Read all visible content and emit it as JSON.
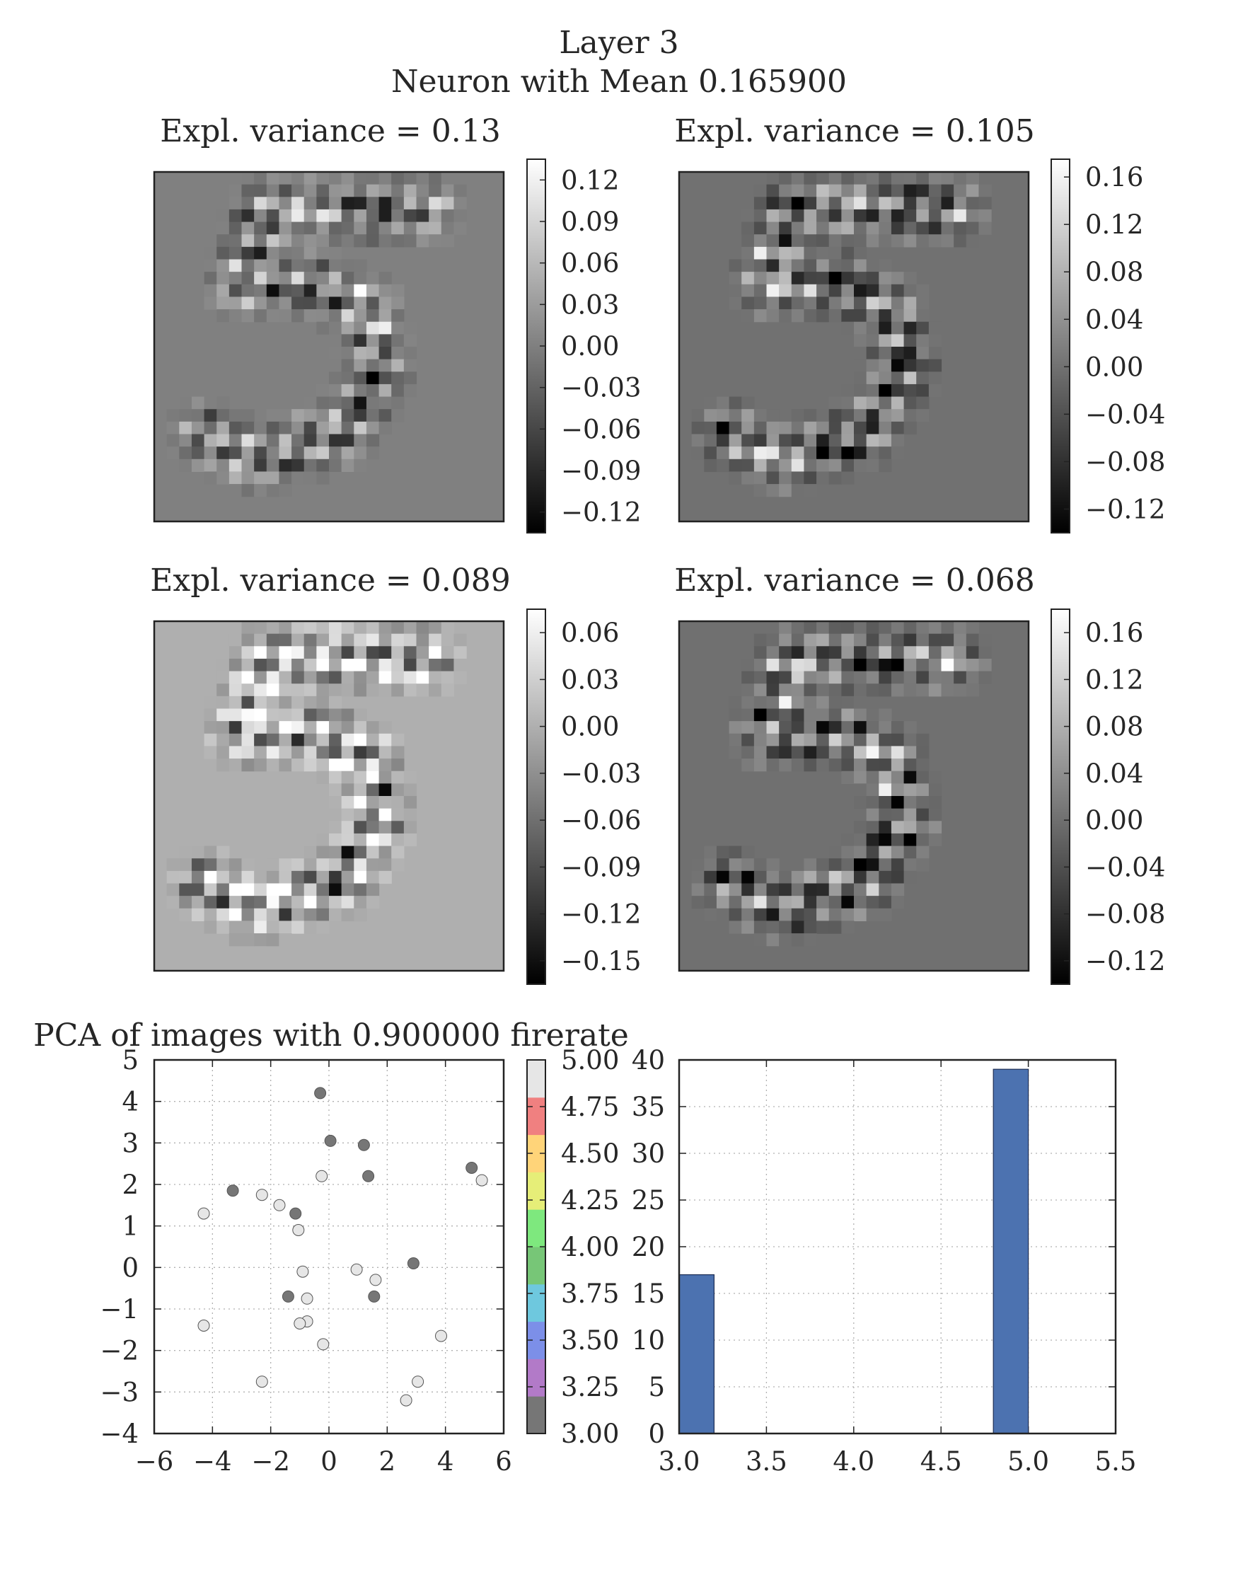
{
  "figure": {
    "suptitle_line1": "Layer 3",
    "suptitle_line2": "Neuron with Mean 0.165900"
  },
  "colors": {
    "bar": "#4c72b0",
    "dark_point": "#767676",
    "light_point": "#e6e6e6",
    "axis": "#222222",
    "grid": "#b0b0b0"
  },
  "chart_data": [
    {
      "type": "heatmap",
      "title": "Expl. variance = 0.13",
      "description_digit": "5",
      "colormap": "gray",
      "colorbar_ticks": [
        "0.12",
        "0.09",
        "0.06",
        "0.03",
        "0.00",
        "−0.03",
        "−0.06",
        "−0.09",
        "−0.12"
      ],
      "vrange": [
        -0.135,
        0.135
      ],
      "background_value": 0.0
    },
    {
      "type": "heatmap",
      "title": "Expl. variance = 0.105",
      "colormap": "gray",
      "colorbar_ticks": [
        "0.16",
        "0.12",
        "0.08",
        "0.04",
        "0.00",
        "−0.04",
        "−0.08",
        "−0.12"
      ],
      "vrange": [
        -0.14,
        0.175
      ],
      "background_value": 0.0
    },
    {
      "type": "heatmap",
      "title": "Expl. variance = 0.089",
      "colormap": "gray",
      "colorbar_ticks": [
        "0.06",
        "0.03",
        "0.00",
        "−0.03",
        "−0.06",
        "−0.09",
        "−0.12",
        "−0.15"
      ],
      "vrange": [
        -0.165,
        0.075
      ],
      "background_value": 0.0
    },
    {
      "type": "heatmap",
      "title": "Expl. variance = 0.068",
      "colormap": "gray",
      "colorbar_ticks": [
        "0.16",
        "0.12",
        "0.08",
        "0.04",
        "0.00",
        "−0.04",
        "−0.08",
        "−0.12"
      ],
      "vrange": [
        -0.14,
        0.18
      ],
      "background_value": 0.0
    },
    {
      "type": "scatter",
      "title": "PCA of images with 0.900000 firerate",
      "xlim": [
        -6,
        6
      ],
      "ylim": [
        -4,
        5
      ],
      "xticks": [
        "−6",
        "−4",
        "−2",
        "0",
        "2",
        "4",
        "6"
      ],
      "yticks": [
        "5",
        "4",
        "3",
        "2",
        "1",
        "0",
        "−1",
        "−2",
        "−3",
        "−4"
      ],
      "grid": true,
      "colorbar": {
        "ticks": [
          "5.00",
          "4.75",
          "4.50",
          "4.25",
          "4.00",
          "3.75",
          "3.50",
          "3.25",
          "3.00"
        ],
        "range": [
          3.0,
          5.0
        ],
        "segment_colors": [
          "#767676",
          "#b27ac8",
          "#7c8fe8",
          "#6ec8de",
          "#77c677",
          "#7ee87e",
          "#e6ee78",
          "#ffd479",
          "#f08080",
          "#e6e6e6"
        ]
      },
      "points": [
        {
          "x": -0.3,
          "y": 4.2,
          "c": 3
        },
        {
          "x": 0.05,
          "y": 3.05,
          "c": 3
        },
        {
          "x": 1.2,
          "y": 2.95,
          "c": 3
        },
        {
          "x": 1.35,
          "y": 2.2,
          "c": 3
        },
        {
          "x": 4.9,
          "y": 2.4,
          "c": 3
        },
        {
          "x": -3.3,
          "y": 1.85,
          "c": 3
        },
        {
          "x": -1.15,
          "y": 1.3,
          "c": 3
        },
        {
          "x": 2.9,
          "y": 0.1,
          "c": 3
        },
        {
          "x": -1.4,
          "y": -0.7,
          "c": 3
        },
        {
          "x": 1.55,
          "y": -0.7,
          "c": 3
        },
        {
          "x": 5.25,
          "y": 2.1,
          "c": 5
        },
        {
          "x": -0.25,
          "y": 2.2,
          "c": 5
        },
        {
          "x": -2.3,
          "y": 1.75,
          "c": 5
        },
        {
          "x": -1.7,
          "y": 1.5,
          "c": 5
        },
        {
          "x": -4.3,
          "y": 1.3,
          "c": 5
        },
        {
          "x": -1.05,
          "y": 0.9,
          "c": 5
        },
        {
          "x": -0.9,
          "y": -0.1,
          "c": 5
        },
        {
          "x": 0.95,
          "y": -0.05,
          "c": 5
        },
        {
          "x": 1.6,
          "y": -0.3,
          "c": 5
        },
        {
          "x": -0.75,
          "y": -0.75,
          "c": 5
        },
        {
          "x": -0.75,
          "y": -1.3,
          "c": 5
        },
        {
          "x": -1.0,
          "y": -1.35,
          "c": 5
        },
        {
          "x": -4.3,
          "y": -1.4,
          "c": 5
        },
        {
          "x": -0.2,
          "y": -1.85,
          "c": 5
        },
        {
          "x": 3.85,
          "y": -1.65,
          "c": 5
        },
        {
          "x": -2.3,
          "y": -2.75,
          "c": 5
        },
        {
          "x": 3.05,
          "y": -2.75,
          "c": 5
        },
        {
          "x": 2.65,
          "y": -3.2,
          "c": 5
        }
      ]
    },
    {
      "type": "bar",
      "xlim": [
        3.0,
        5.5
      ],
      "ylim": [
        0,
        40
      ],
      "xticks": [
        "3.0",
        "3.5",
        "4.0",
        "4.5",
        "5.0",
        "5.5"
      ],
      "yticks": [
        "40",
        "35",
        "30",
        "25",
        "20",
        "15",
        "10",
        "5",
        "0"
      ],
      "grid": true,
      "bins": [
        {
          "x0": 3.0,
          "x1": 3.2,
          "value": 17
        },
        {
          "x0": 4.8,
          "x1": 5.0,
          "value": 39
        }
      ]
    }
  ]
}
